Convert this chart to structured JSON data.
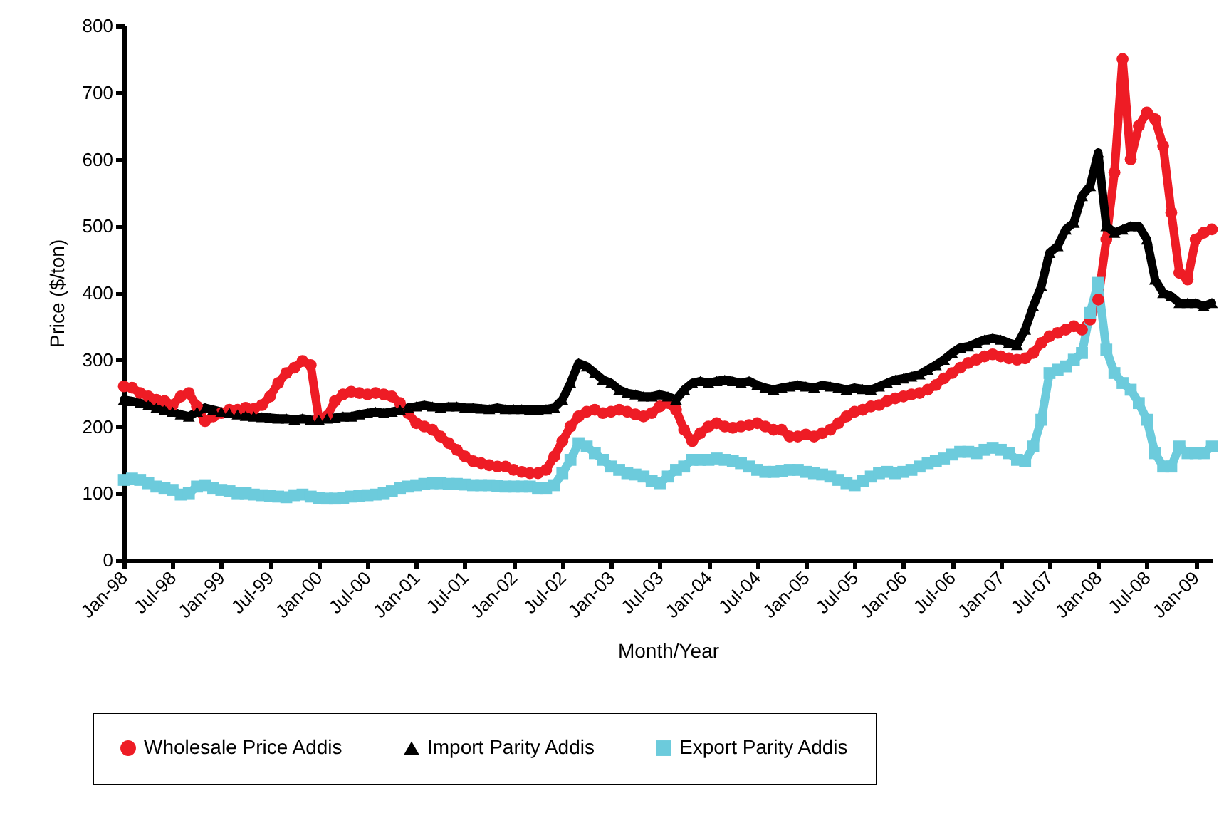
{
  "chart_data": {
    "type": "line",
    "xlabel": "Month/Year",
    "ylabel": "Price ($/ton)",
    "categories": [
      "Jan-98",
      null,
      null,
      null,
      null,
      null,
      "Jul-98",
      null,
      null,
      null,
      null,
      null,
      "Jan-99",
      null,
      null,
      null,
      null,
      null,
      "Jul-99",
      null,
      null,
      null,
      null,
      null,
      "Jan-00",
      null,
      null,
      null,
      null,
      null,
      "Jul-00",
      null,
      null,
      null,
      null,
      null,
      "Jan-01",
      null,
      null,
      null,
      null,
      null,
      "Jul-01",
      null,
      null,
      null,
      null,
      null,
      "Jan-02",
      null,
      null,
      null,
      null,
      null,
      "Jul-02",
      null,
      null,
      null,
      null,
      null,
      "Jan-03",
      null,
      null,
      null,
      null,
      null,
      "Jul-03",
      null,
      null,
      null,
      null,
      null,
      "Jan-04",
      null,
      null,
      null,
      null,
      null,
      "Jul-04",
      null,
      null,
      null,
      null,
      null,
      "Jan-05",
      null,
      null,
      null,
      null,
      null,
      "Jul-05",
      null,
      null,
      null,
      null,
      null,
      "Jan-06",
      null,
      null,
      null,
      null,
      null,
      "Jul-06",
      null,
      null,
      null,
      null,
      null,
      "Jan-07",
      null,
      null,
      null,
      null,
      null,
      "Jul-07",
      null,
      null,
      null,
      null,
      null,
      "Jan-08",
      null,
      null,
      null,
      null,
      null,
      "Jul-08",
      null,
      null,
      null,
      null,
      null,
      "Jan-09",
      null,
      null
    ],
    "series": [
      {
        "name": "Wholesale Price Addis",
        "color": "#ee1c25",
        "marker": "circle",
        "values": [
          260,
          258,
          250,
          245,
          240,
          238,
          232,
          245,
          250,
          230,
          208,
          215,
          220,
          225,
          225,
          228,
          226,
          232,
          245,
          265,
          280,
          288,
          298,
          292,
          212,
          215,
          238,
          248,
          252,
          250,
          248,
          250,
          248,
          245,
          235,
          220,
          205,
          200,
          195,
          185,
          175,
          165,
          155,
          148,
          145,
          142,
          140,
          140,
          135,
          132,
          130,
          130,
          135,
          155,
          178,
          200,
          215,
          222,
          225,
          220,
          222,
          225,
          222,
          218,
          215,
          220,
          230,
          235,
          225,
          195,
          178,
          190,
          200,
          205,
          200,
          198,
          200,
          202,
          205,
          200,
          195,
          195,
          185,
          185,
          188,
          185,
          190,
          195,
          205,
          215,
          222,
          225,
          230,
          232,
          238,
          242,
          245,
          248,
          250,
          255,
          262,
          272,
          280,
          288,
          295,
          300,
          305,
          308,
          305,
          302,
          300,
          302,
          310,
          325,
          335,
          340,
          345,
          350,
          345,
          360,
          390,
          480,
          580,
          750,
          600,
          650,
          670,
          660,
          620,
          520,
          430,
          420,
          480,
          490,
          495
        ]
      },
      {
        "name": "Import Parity Addis",
        "color": "#000000",
        "marker": "triangle",
        "values": [
          240,
          238,
          235,
          232,
          228,
          225,
          222,
          218,
          215,
          222,
          228,
          225,
          222,
          220,
          218,
          216,
          215,
          214,
          213,
          212,
          212,
          210,
          212,
          210,
          210,
          212,
          213,
          215,
          215,
          218,
          220,
          222,
          220,
          222,
          225,
          228,
          230,
          232,
          230,
          228,
          230,
          230,
          228,
          228,
          227,
          226,
          228,
          226,
          226,
          226,
          225,
          225,
          226,
          228,
          240,
          265,
          295,
          290,
          280,
          270,
          265,
          255,
          250,
          248,
          245,
          245,
          248,
          245,
          240,
          255,
          265,
          268,
          265,
          268,
          270,
          268,
          265,
          268,
          262,
          258,
          255,
          258,
          260,
          262,
          260,
          258,
          262,
          260,
          258,
          255,
          258,
          256,
          255,
          260,
          265,
          270,
          272,
          275,
          278,
          285,
          292,
          300,
          310,
          318,
          320,
          325,
          330,
          332,
          330,
          325,
          322,
          345,
          380,
          410,
          460,
          470,
          495,
          505,
          545,
          560,
          610,
          500,
          490,
          495,
          500,
          500,
          480,
          420,
          400,
          395,
          385,
          385,
          385,
          380,
          385
        ]
      },
      {
        "name": "Export Parity Addis",
        "color": "#6ccbdc",
        "marker": "square",
        "values": [
          120,
          122,
          120,
          115,
          110,
          108,
          105,
          98,
          100,
          110,
          112,
          108,
          105,
          103,
          100,
          100,
          98,
          97,
          96,
          95,
          94,
          97,
          98,
          95,
          93,
          92,
          92,
          93,
          95,
          96,
          97,
          98,
          100,
          103,
          108,
          110,
          112,
          114,
          115,
          115,
          114,
          114,
          113,
          112,
          112,
          112,
          111,
          110,
          110,
          110,
          110,
          108,
          108,
          112,
          130,
          150,
          175,
          170,
          160,
          150,
          140,
          135,
          130,
          128,
          125,
          118,
          115,
          125,
          135,
          140,
          150,
          150,
          150,
          152,
          150,
          148,
          145,
          140,
          135,
          132,
          132,
          133,
          135,
          135,
          132,
          130,
          128,
          125,
          120,
          115,
          112,
          118,
          125,
          130,
          132,
          130,
          132,
          135,
          140,
          145,
          148,
          152,
          158,
          162,
          162,
          160,
          165,
          168,
          165,
          160,
          150,
          148,
          170,
          210,
          280,
          285,
          290,
          300,
          310,
          370,
          415,
          315,
          280,
          265,
          255,
          235,
          210,
          160,
          140,
          140,
          170,
          160,
          160,
          160,
          170
        ]
      }
    ],
    "ylim": [
      0,
      800
    ],
    "yticks": [
      0,
      100,
      200,
      300,
      400,
      500,
      600,
      700,
      800
    ],
    "grid": false,
    "legend": "bottom",
    "line_style": "solid"
  }
}
